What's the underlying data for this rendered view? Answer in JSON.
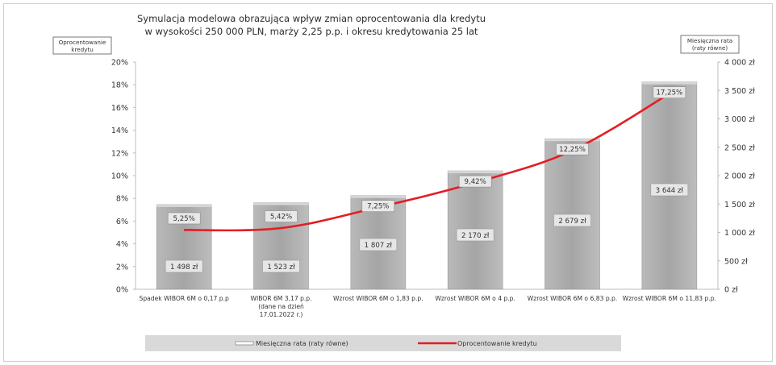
{
  "chart_data": {
    "type": "bar+line",
    "title_lines": [
      "Symulacja modelowa obrazująca wpływ zmian oprocentowania dla kredytu",
      "w wysokości 250 000 PLN, marży 2,25 p.p. i okresu kredytowania 25 lat"
    ],
    "left_axis_title": [
      "Oprocentowanie",
      "kredytu"
    ],
    "right_axis_title": [
      "Miesięczna rata",
      "(raty równe)"
    ],
    "categories": [
      [
        "Spadek WIBOR 6M o 0,17 p.p"
      ],
      [
        "WIBOR 6M 3,17 p.p.",
        "(dane na dzień",
        "17.01.2022 r.)"
      ],
      [
        "Wzrost WIBOR 6M o 1,83 p.p."
      ],
      [
        "Wzrost WIBOR 6M o 4 p.p."
      ],
      [
        "Wzrost WIBOR 6M o 6,83 p.p."
      ],
      [
        "Wzrost WIBOR 6M o 11,83 p.p."
      ]
    ],
    "bar_series": {
      "name": "Miesięczna rata (raty równe)",
      "values": [
        1498,
        1523,
        1807,
        2170,
        2679,
        3644
      ],
      "labels": [
        "1 498 zł",
        "1 523 zł",
        "1 807 zł",
        "2 170 zł",
        "2 679 zł",
        "3 644 zł"
      ],
      "color": "#a9a9a9"
    },
    "line_series": {
      "name": "Oprocentowanie kredytu",
      "values": [
        5.25,
        5.42,
        7.25,
        9.42,
        12.25,
        17.25
      ],
      "labels": [
        "5,25%",
        "5,42%",
        "7,25%",
        "9,42%",
        "12,25%",
        "17,25%"
      ],
      "color": "#e31e24"
    },
    "left_axis": {
      "min": 0,
      "max": 20,
      "step": 2,
      "tick_labels": [
        "0%",
        "2%",
        "4%",
        "6%",
        "8%",
        "10%",
        "12%",
        "14%",
        "16%",
        "18%",
        "20%"
      ]
    },
    "right_axis": {
      "min": 0,
      "max": 4000,
      "step": 500,
      "tick_labels": [
        "0 zł",
        "500 zł",
        "1 000 zł",
        "1 500 zł",
        "2 000 zł",
        "2 500 zł",
        "3 000 zł",
        "3 500 zł",
        "4 000 zł"
      ]
    },
    "bar_heights_note": "",
    "grid": false,
    "legend_position": "bottom"
  }
}
